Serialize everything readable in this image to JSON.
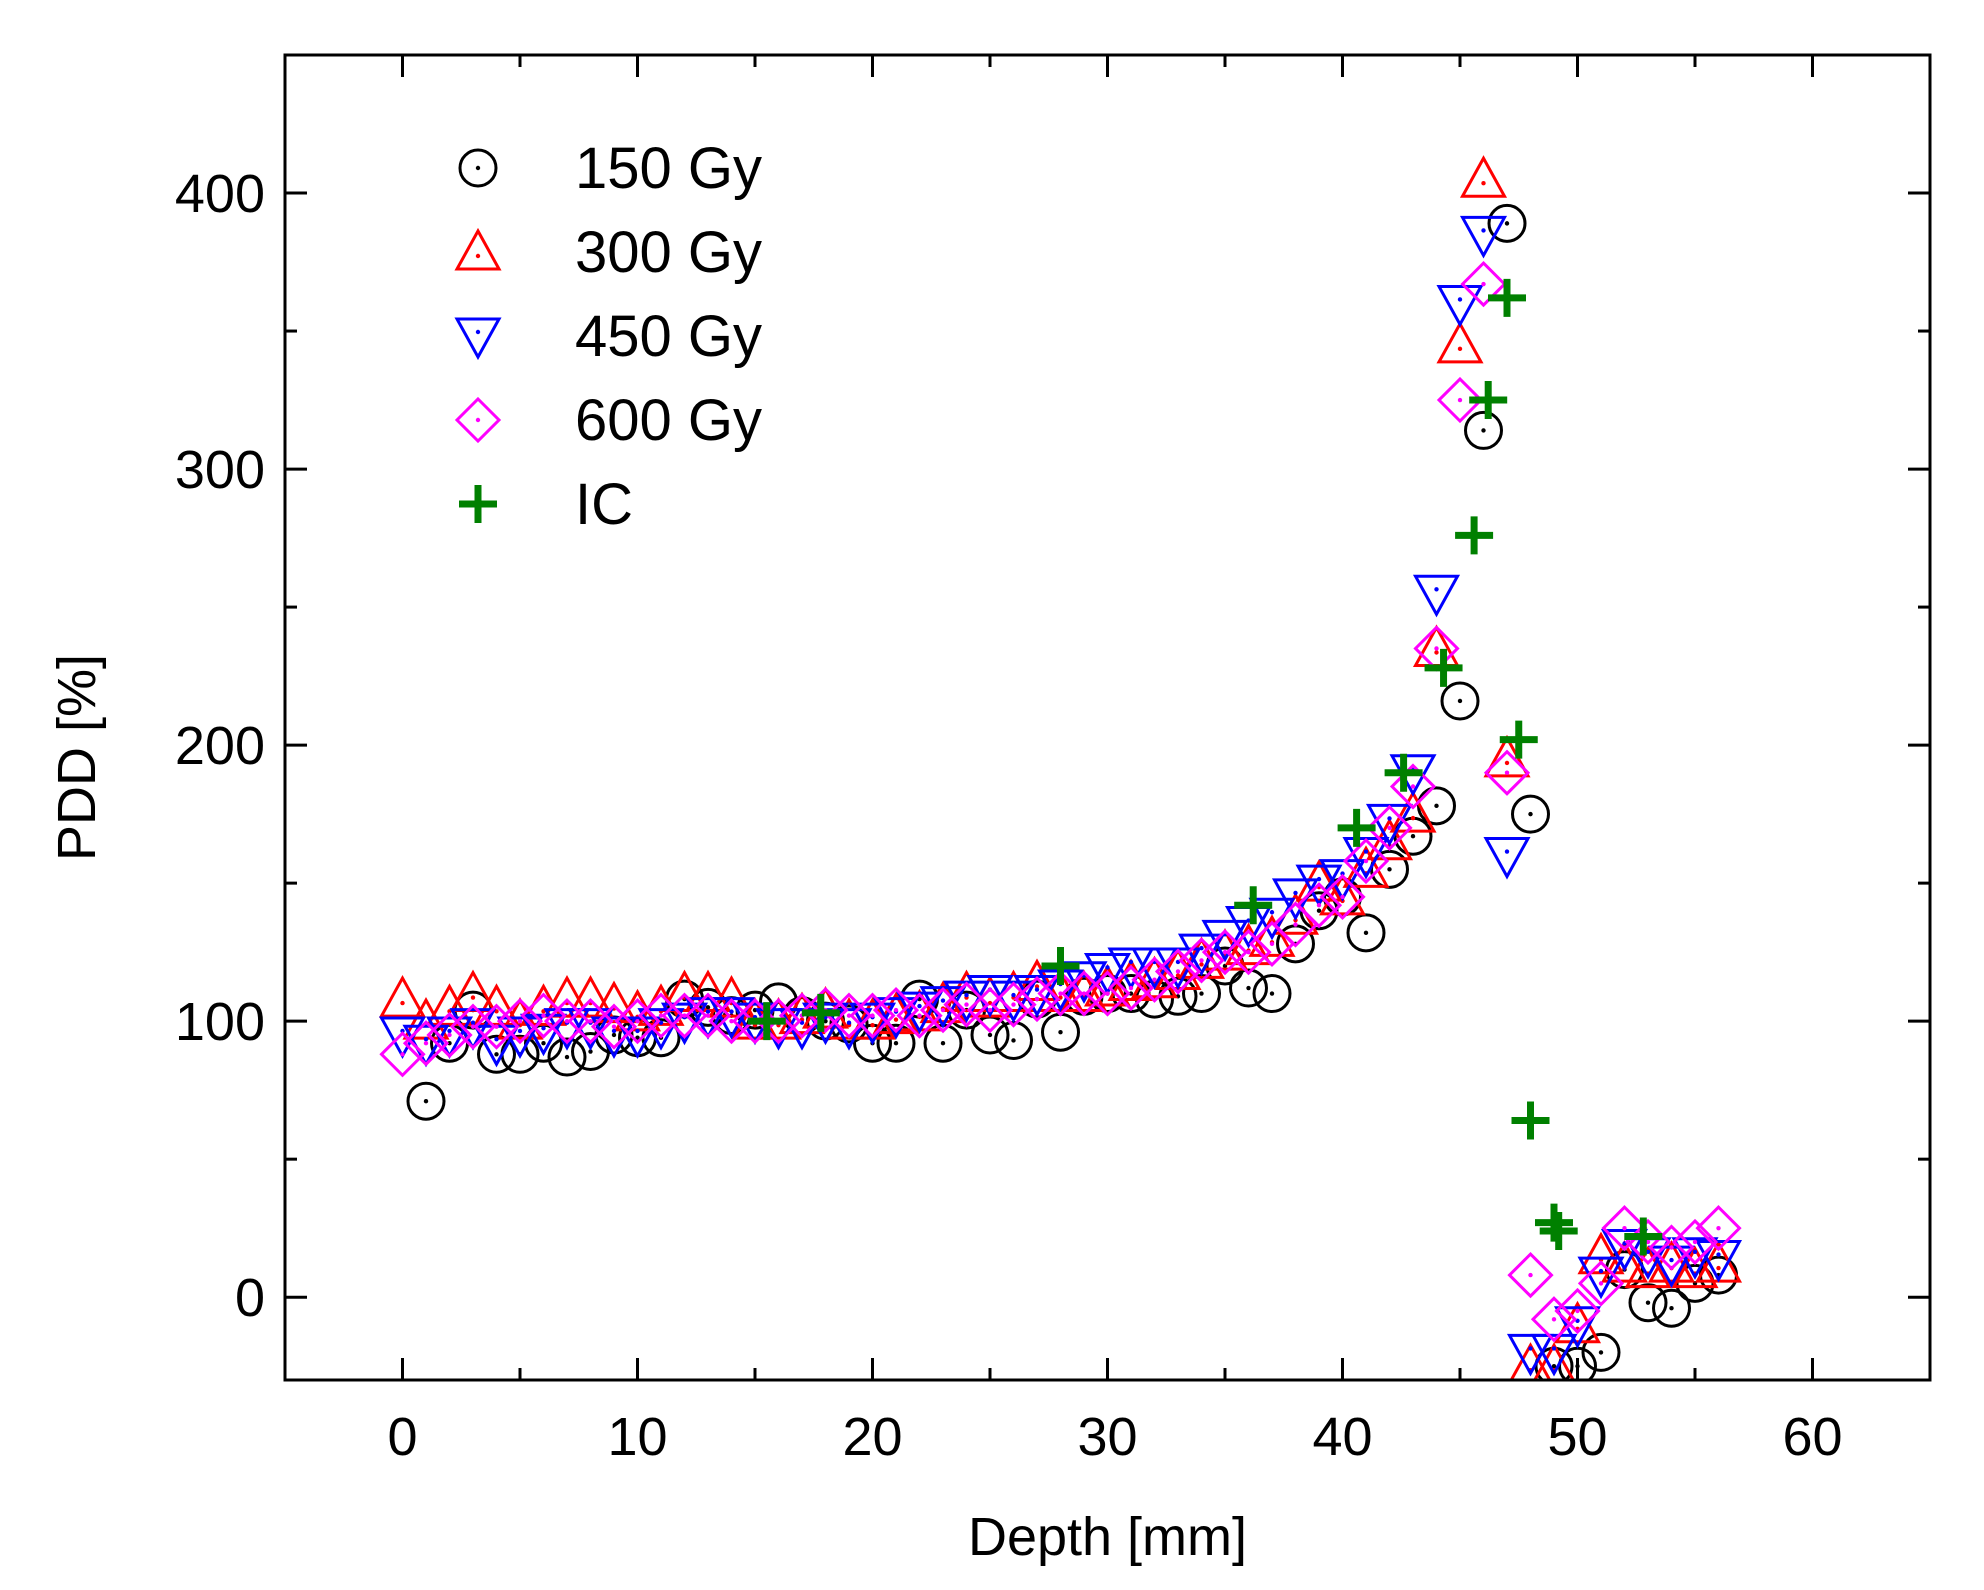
{
  "chart_data": {
    "type": "scatter",
    "title": "",
    "xlabel": "Depth [mm]",
    "ylabel": "PDD [%]",
    "xlim": [
      -5,
      65
    ],
    "ylim": [
      -30,
      450
    ],
    "xticks": [
      0,
      10,
      20,
      30,
      40,
      50,
      60
    ],
    "yticks": [
      0,
      100,
      200,
      300,
      400
    ],
    "grid": false,
    "legend": "top-left",
    "series": [
      {
        "name": "150 Gy",
        "marker": "circle",
        "color": "#000000",
        "x": [
          1,
          2,
          3,
          4,
          5,
          6,
          7,
          8,
          9,
          10,
          11,
          12,
          13,
          14,
          15,
          16,
          17,
          18,
          19,
          20,
          21,
          22,
          23,
          24,
          25,
          26,
          27,
          28,
          29,
          30,
          31,
          32,
          33,
          34,
          35,
          36,
          37,
          38,
          39,
          40,
          41,
          42,
          43,
          44,
          45,
          46,
          47,
          48,
          49,
          50,
          51,
          52,
          53,
          54,
          55,
          56
        ],
        "y": [
          71,
          92,
          104,
          88,
          88,
          92,
          87,
          89,
          95,
          94,
          94,
          108,
          105,
          102,
          104,
          107,
          102,
          100,
          99,
          92,
          92,
          108,
          92,
          104,
          95,
          93,
          108,
          96,
          109,
          110,
          110,
          108,
          109,
          110,
          120,
          112,
          110,
          128,
          140,
          145,
          132,
          155,
          167,
          178,
          216,
          314,
          389,
          175,
          -25,
          -25,
          -20,
          10,
          -2,
          -4,
          5,
          8
        ]
      },
      {
        "name": "300 Gy",
        "marker": "triangle-up",
        "color": "#ff0000",
        "x": [
          0,
          1,
          2,
          3,
          4,
          5,
          6,
          7,
          8,
          9,
          10,
          11,
          12,
          13,
          14,
          15,
          16,
          17,
          18,
          19,
          20,
          21,
          22,
          23,
          24,
          25,
          26,
          27,
          28,
          29,
          30,
          31,
          32,
          33,
          34,
          35,
          36,
          37,
          38,
          39,
          40,
          41,
          42,
          43,
          44,
          45,
          46,
          47,
          48,
          49,
          50,
          51,
          52,
          53,
          54,
          55,
          56
        ],
        "y": [
          108,
          100,
          105,
          110,
          105,
          100,
          105,
          108,
          108,
          106,
          103,
          105,
          110,
          110,
          108,
          100,
          100,
          102,
          104,
          100,
          100,
          102,
          103,
          106,
          110,
          108,
          110,
          114,
          110,
          110,
          112,
          114,
          115,
          118,
          122,
          125,
          127,
          130,
          138,
          150,
          145,
          155,
          165,
          175,
          235,
          345,
          405,
          195,
          -25,
          -25,
          -10,
          15,
          12,
          10,
          12,
          10,
          12
        ]
      },
      {
        "name": "450 Gy",
        "marker": "triangle-down",
        "color": "#0000ff",
        "x": [
          0,
          1,
          2,
          3,
          4,
          5,
          6,
          7,
          8,
          9,
          10,
          11,
          12,
          13,
          14,
          15,
          16,
          17,
          18,
          19,
          20,
          21,
          22,
          23,
          24,
          25,
          26,
          27,
          28,
          29,
          30,
          31,
          32,
          33,
          34,
          35,
          36,
          37,
          38,
          39,
          40,
          41,
          42,
          43,
          44,
          45,
          46,
          47,
          48,
          49,
          50,
          51,
          52,
          53,
          54,
          55,
          56
        ],
        "y": [
          95,
          92,
          95,
          98,
          92,
          95,
          96,
          98,
          98,
          95,
          95,
          98,
          100,
          102,
          102,
          100,
          98,
          98,
          100,
          98,
          100,
          102,
          104,
          106,
          108,
          110,
          108,
          110,
          112,
          115,
          118,
          120,
          120,
          120,
          125,
          130,
          135,
          138,
          145,
          150,
          152,
          160,
          172,
          190,
          255,
          360,
          385,
          160,
          -20,
          -20,
          -10,
          8,
          18,
          15,
          12,
          15,
          14
        ]
      },
      {
        "name": "600 Gy",
        "marker": "diamond",
        "color": "#ff00ff",
        "x": [
          0,
          1,
          2,
          3,
          4,
          5,
          6,
          7,
          8,
          9,
          10,
          11,
          12,
          13,
          14,
          15,
          16,
          17,
          18,
          19,
          20,
          21,
          22,
          23,
          24,
          25,
          26,
          27,
          28,
          29,
          30,
          31,
          32,
          33,
          34,
          35,
          36,
          37,
          38,
          39,
          40,
          41,
          42,
          43,
          44,
          45,
          46,
          47,
          48,
          49,
          50,
          51,
          52,
          53,
          54,
          55,
          56
        ],
        "y": [
          88,
          92,
          95,
          98,
          98,
          100,
          102,
          100,
          100,
          98,
          100,
          102,
          102,
          102,
          100,
          100,
          100,
          102,
          104,
          102,
          102,
          104,
          102,
          104,
          106,
          104,
          106,
          108,
          110,
          110,
          110,
          112,
          115,
          118,
          122,
          125,
          125,
          128,
          135,
          142,
          145,
          158,
          170,
          185,
          235,
          325,
          367,
          190,
          8,
          -8,
          -5,
          5,
          25,
          20,
          18,
          20,
          25
        ]
      },
      {
        "name": "IC",
        "marker": "plus",
        "color": "#008000",
        "x": [
          15.5,
          17.8,
          28,
          36.2,
          40.6,
          42.6,
          44.3,
          45.6,
          46.2,
          47,
          47.5,
          48,
          49,
          49.2,
          52.8
        ],
        "y": [
          100,
          103,
          120,
          142,
          170,
          190,
          228,
          276,
          325,
          362,
          202,
          64,
          27,
          24,
          22
        ]
      }
    ]
  }
}
